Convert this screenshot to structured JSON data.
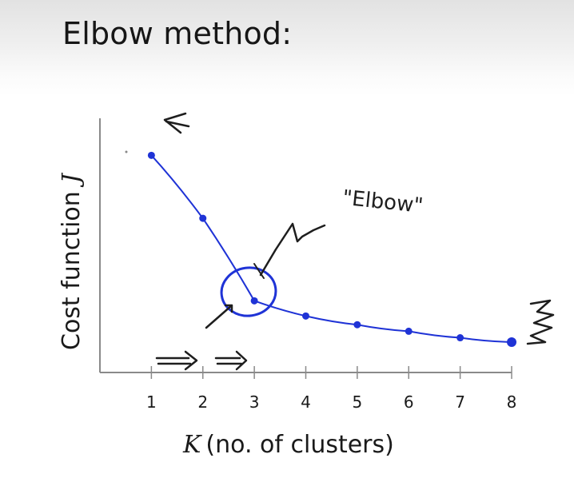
{
  "slide": {
    "title": "Elbow method:"
  },
  "chart_data": {
    "type": "line",
    "title": "",
    "xlabel_var": "K",
    "xlabel": "(no. of clusters)",
    "ylabel": "Cost function",
    "ylabel_var": "J",
    "x": [
      1,
      2,
      3,
      4,
      5,
      6,
      7,
      8
    ],
    "x_tick_labels": [
      "1",
      "2",
      "3",
      "4",
      "5",
      "6",
      "7",
      "8"
    ],
    "series": [
      {
        "values": [
          10.0,
          7.1,
          3.3,
          2.6,
          2.2,
          1.9,
          1.6,
          1.4
        ]
      }
    ],
    "xlim": [
      0,
      8
    ],
    "ylim": [
      0,
      12
    ],
    "grid": false,
    "legend": "none",
    "series_color": "#1f33d6",
    "annotations": {
      "elbow_label": "\"Elbow\""
    }
  },
  "colors": {
    "ink": "#1e1e1e",
    "series": "#1f33d6",
    "axis": "#8a8a8a"
  }
}
